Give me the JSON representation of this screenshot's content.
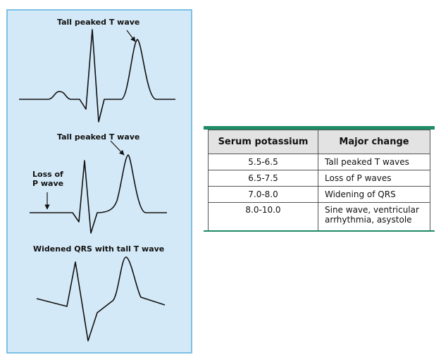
{
  "ecg": {
    "panel1_label": "Tall peaked T wave",
    "panel2_label": "Tall peaked T wave",
    "panel2_side_label": "Loss of\nP wave",
    "panel3_label": "Widened QRS with tall T wave"
  },
  "table": {
    "headers": [
      "Serum potassium",
      "Major change"
    ],
    "rows": [
      {
        "potassium": "5.5-6.5",
        "change": "Tall peaked T waves"
      },
      {
        "potassium": "6.5-7.5",
        "change": "Loss of P waves"
      },
      {
        "potassium": "7.0-8.0",
        "change": "Widening of QRS"
      },
      {
        "potassium": "8.0-10.0",
        "change": "Sine wave, ventricular arrhythmia, asystole"
      }
    ]
  },
  "colors": {
    "panel_bg": "#d4e9f7",
    "panel_border": "#7cc0e3",
    "table_rule": "#1e8a66",
    "header_bg": "#e3e3e3"
  }
}
